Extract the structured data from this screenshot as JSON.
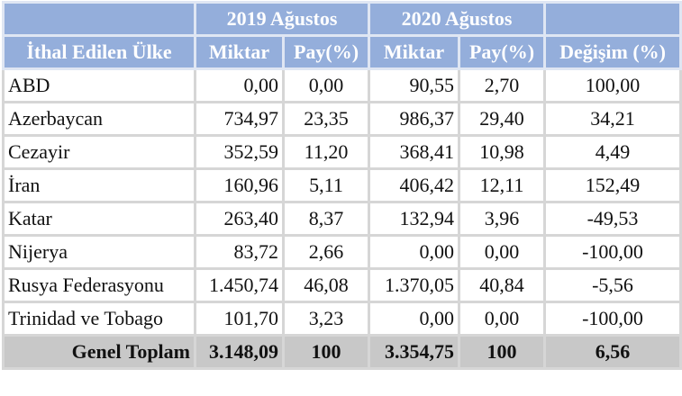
{
  "header": {
    "groups": [
      "2019 Ağustos",
      "2020 Ağustos"
    ],
    "columns": [
      "İthal Edilen Ülke",
      "Miktar",
      "Pay(%)",
      "Miktar",
      "Pay(%)",
      "Değişim (%)"
    ]
  },
  "table": {
    "rows": [
      [
        "ABD",
        "0,00",
        "0,00",
        "90,55",
        "2,70",
        "100,00"
      ],
      [
        "Azerbaycan",
        "734,97",
        "23,35",
        "986,37",
        "29,40",
        "34,21"
      ],
      [
        "Cezayir",
        "352,59",
        "11,20",
        "368,41",
        "10,98",
        "4,49"
      ],
      [
        "İran",
        "160,96",
        "5,11",
        "406,42",
        "12,11",
        "152,49"
      ],
      [
        "Katar",
        "263,40",
        "8,37",
        "132,94",
        "3,96",
        "-49,53"
      ],
      [
        "Nijerya",
        "83,72",
        "2,66",
        "0,00",
        "0,00",
        "-100,00"
      ],
      [
        "Rusya Federasyonu",
        "1.450,74",
        "46,08",
        "1.370,05",
        "40,84",
        "-5,56"
      ],
      [
        "Trinidad ve Tobago",
        "101,70",
        "3,23",
        "0,00",
        "0,00",
        "-100,00"
      ]
    ],
    "total": [
      "Genel Toplam",
      "3.148,09",
      "100",
      "3.354,75",
      "100",
      "6,56"
    ]
  }
}
